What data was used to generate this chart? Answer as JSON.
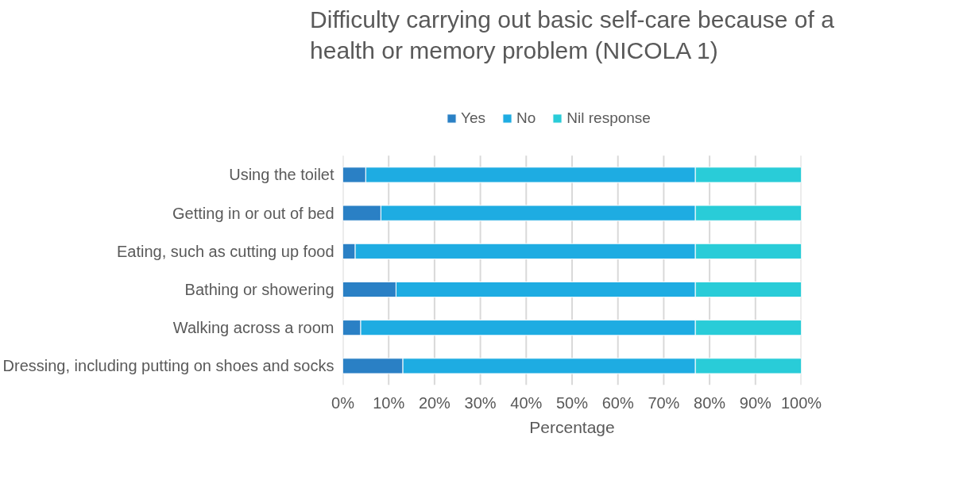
{
  "chart_data": {
    "type": "bar",
    "orientation": "horizontal",
    "stacked": true,
    "title": "Difficulty carrying out basic self-care because of a health or memory problem (NICOLA 1)",
    "xlabel": "Percentage",
    "categories": [
      "Using the toilet",
      "Getting in or out of bed",
      "Eating, such as cutting up food",
      "Bathing or showering",
      "Walking across a room",
      "Dressing, including putting on shoes and socks"
    ],
    "series": [
      {
        "name": "Yes",
        "color": "#2a80c5",
        "values": [
          5.0,
          8.3,
          2.7,
          11.6,
          3.9,
          13.1
        ]
      },
      {
        "name": "No",
        "color": "#1eace2",
        "values": [
          71.9,
          68.6,
          74.2,
          65.3,
          73.0,
          63.8
        ]
      },
      {
        "name": "Nil response",
        "color": "#29ccd8",
        "values": [
          23.1,
          23.1,
          23.1,
          23.1,
          23.1,
          23.1
        ]
      }
    ],
    "xlim": [
      0,
      100
    ],
    "xticks": [
      {
        "value": 0,
        "label": "0%"
      },
      {
        "value": 10,
        "label": "10%"
      },
      {
        "value": 20,
        "label": "20%"
      },
      {
        "value": 30,
        "label": "30%"
      },
      {
        "value": 40,
        "label": "40%"
      },
      {
        "value": 50,
        "label": "50%"
      },
      {
        "value": 60,
        "label": "60%"
      },
      {
        "value": 70,
        "label": "70%"
      },
      {
        "value": 80,
        "label": "80%"
      },
      {
        "value": 90,
        "label": "90%"
      },
      {
        "value": 100,
        "label": "100%"
      }
    ],
    "grid": "x",
    "legend": "top"
  }
}
